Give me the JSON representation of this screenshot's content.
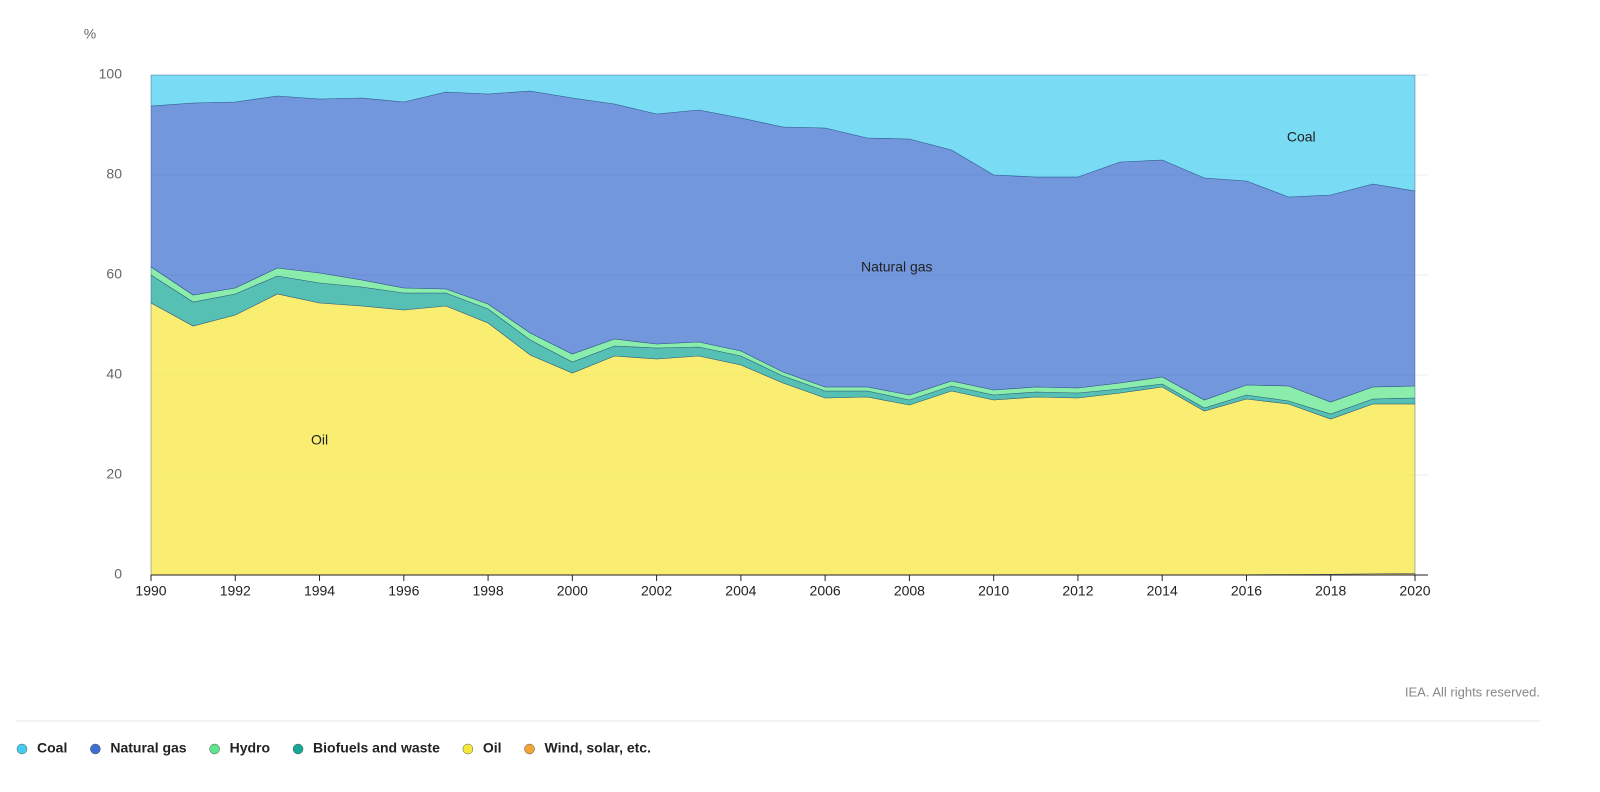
{
  "chart_data": {
    "type": "stacked_area",
    "y_label": "%",
    "source": "IEA. All rights reserved.",
    "x": [
      1990,
      1991,
      1992,
      1993,
      1994,
      1995,
      1996,
      1997,
      1998,
      1999,
      2000,
      2001,
      2002,
      2003,
      2004,
      2005,
      2006,
      2007,
      2008,
      2009,
      2010,
      2011,
      2012,
      2013,
      2014,
      2015,
      2016,
      2017,
      2018,
      2019,
      2020
    ],
    "xlim": [
      1990,
      2020
    ],
    "xticks": [
      1990,
      1992,
      1994,
      1996,
      1998,
      2000,
      2002,
      2004,
      2006,
      2008,
      2010,
      2012,
      2014,
      2016,
      2018,
      2020
    ],
    "ylim": [
      0,
      100
    ],
    "yticks": [
      0,
      20,
      40,
      60,
      80,
      100
    ],
    "grid": true,
    "series": [
      {
        "name": "Coal",
        "color": "#45cdf0",
        "values": [
          6.2,
          5.6,
          5.4,
          4.2,
          4.8,
          4.6,
          5.4,
          3.4,
          3.8,
          3.2,
          4.6,
          5.8,
          7.8,
          7,
          8.6,
          10.4,
          10.6,
          12.6,
          12.8,
          15,
          20,
          20.4,
          20.4,
          17.4,
          17,
          20.6,
          21.2,
          24.4,
          24,
          21.8,
          23.2
        ]
      },
      {
        "name": "Natural gas",
        "color": "#3c6fcf",
        "values": [
          32.2,
          38.4,
          37.2,
          34.4,
          34.8,
          36.4,
          37.2,
          39.4,
          42,
          48.4,
          51.2,
          47,
          46,
          46.4,
          46.6,
          49,
          51.8,
          49.8,
          51.2,
          46.2,
          43,
          42,
          42.2,
          44.2,
          43.4,
          44.4,
          40.8,
          37.8,
          41.4,
          40.6,
          39
        ]
      },
      {
        "name": "Hydro",
        "color": "#5ee68c",
        "values": [
          1.6,
          1.4,
          1.2,
          1.6,
          2,
          1.4,
          1,
          0.8,
          1,
          1.4,
          1.6,
          1.4,
          0.8,
          1,
          1,
          0.8,
          0.8,
          0.8,
          1,
          1,
          1,
          1,
          1,
          1.2,
          1.4,
          1.6,
          2,
          3,
          2.4,
          2.4,
          2.4
        ]
      },
      {
        "name": "Biofuels and waste",
        "color": "#16a898",
        "values": [
          5.6,
          4.8,
          4.2,
          3.6,
          4,
          3.8,
          3.4,
          2.6,
          2.8,
          3,
          2.2,
          2,
          2.2,
          1.8,
          1.8,
          1.4,
          1.4,
          1.2,
          1,
          1,
          1,
          1,
          1,
          0.8,
          0.6,
          0.6,
          0.8,
          0.6,
          1,
          1,
          1.2
        ]
      },
      {
        "name": "Oil",
        "color": "#f7e83c",
        "values": [
          54.4,
          49.8,
          52,
          56.2,
          54.4,
          53.8,
          53,
          53.8,
          50.4,
          44,
          40.4,
          43.8,
          43.2,
          43.8,
          42,
          38.4,
          35.4,
          35.6,
          34,
          36.8,
          34.95,
          35.55,
          35.35,
          36.35,
          37.55,
          32.75,
          35.15,
          34.1,
          31.05,
          33.95,
          33.9
        ]
      },
      {
        "name": "Wind, solar, etc.",
        "color": "#f0a534",
        "values": [
          0,
          0,
          0,
          0,
          0,
          0,
          0,
          0,
          0,
          0,
          0,
          0,
          0,
          0,
          0,
          0,
          0,
          0,
          0,
          0,
          0.05,
          0.05,
          0.05,
          0.05,
          0.05,
          0.05,
          0.05,
          0.1,
          0.15,
          0.25,
          0.3
        ]
      }
    ],
    "annotations": [
      {
        "text": "Coal",
        "x": 2017.3,
        "y": 87.4
      },
      {
        "text": "Natural gas",
        "x": 2007.7,
        "y": 61.4
      },
      {
        "text": "Oil",
        "x": 1994,
        "y": 26.8
      }
    ]
  }
}
